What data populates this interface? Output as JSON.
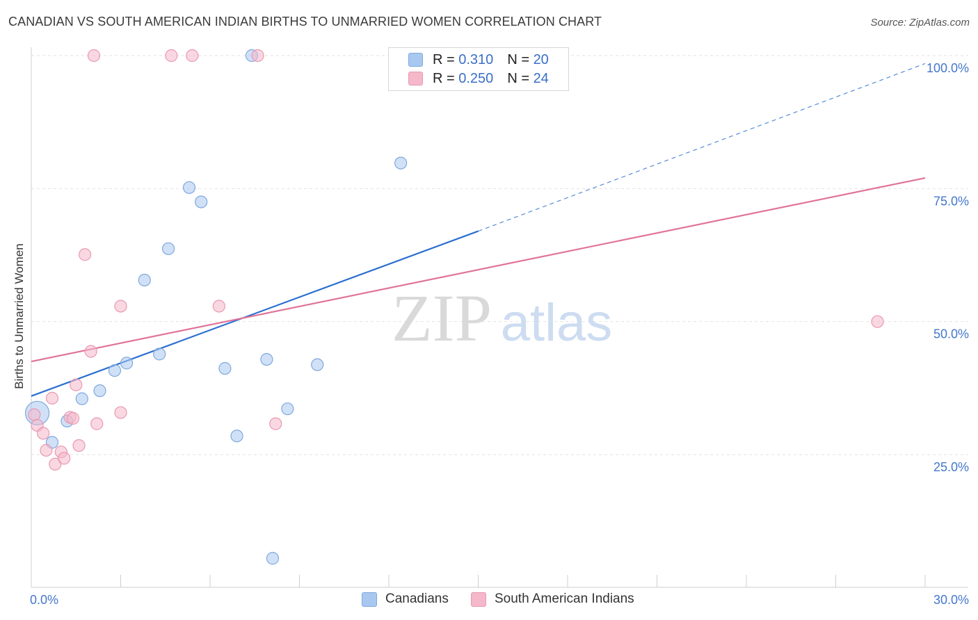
{
  "header": {
    "title": "CANADIAN VS SOUTH AMERICAN INDIAN BIRTHS TO UNMARRIED WOMEN CORRELATION CHART",
    "source": "Source: ZipAtlas.com"
  },
  "watermark": {
    "zip": "ZIP",
    "atlas": "atlas"
  },
  "legend_top": {
    "rows": [
      {
        "r_label": "R =",
        "r_value": "0.310",
        "n_label": "N =",
        "n_value": "20",
        "color": "#a9c8f0"
      },
      {
        "r_label": "R =",
        "r_value": "0.250",
        "n_label": "N =",
        "n_value": "24",
        "color": "#f5b8cb"
      }
    ]
  },
  "legend_bottom": {
    "items": [
      {
        "label": "Canadians",
        "color": "#a9c8f0"
      },
      {
        "label": "South American Indians",
        "color": "#f5b8cb"
      }
    ]
  },
  "chart_data": {
    "type": "scatter",
    "title": "CANADIAN VS SOUTH AMERICAN INDIAN BIRTHS TO UNMARRIED WOMEN CORRELATION CHART",
    "xlabel": "",
    "ylabel": "Births to Unmarried Women",
    "xlim": [
      0,
      30
    ],
    "ylim": [
      0,
      102
    ],
    "x_tick_labels": [
      {
        "value": 0,
        "label": "0.0%"
      },
      {
        "value": 30,
        "label": "30.0%"
      }
    ],
    "y_tick_labels": [
      {
        "value": 25,
        "label": "25.0%"
      },
      {
        "value": 50,
        "label": "50.0%"
      },
      {
        "value": 75,
        "label": "75.0%"
      },
      {
        "value": 100,
        "label": "100.0%"
      }
    ],
    "grid": true,
    "series": [
      {
        "name": "Canadians",
        "color": "#a9c8f0",
        "stroke": "#7fa8dc",
        "line_color": "#2a6fcf",
        "points": [
          {
            "x": 0.2,
            "y": 32.8,
            "big": true
          },
          {
            "x": 0.7,
            "y": 27.3
          },
          {
            "x": 1.2,
            "y": 31.3
          },
          {
            "x": 1.7,
            "y": 35.5
          },
          {
            "x": 2.3,
            "y": 37.0
          },
          {
            "x": 2.8,
            "y": 40.8
          },
          {
            "x": 3.2,
            "y": 42.2
          },
          {
            "x": 3.8,
            "y": 57.8
          },
          {
            "x": 4.3,
            "y": 43.9
          },
          {
            "x": 4.6,
            "y": 63.7
          },
          {
            "x": 5.3,
            "y": 75.2
          },
          {
            "x": 5.7,
            "y": 72.5
          },
          {
            "x": 6.5,
            "y": 41.2
          },
          {
            "x": 6.9,
            "y": 28.5
          },
          {
            "x": 7.4,
            "y": 100.0
          },
          {
            "x": 7.9,
            "y": 42.9
          },
          {
            "x": 8.1,
            "y": 5.5
          },
          {
            "x": 8.6,
            "y": 33.6
          },
          {
            "x": 9.6,
            "y": 41.9
          },
          {
            "x": 12.4,
            "y": 79.8
          }
        ],
        "trend": {
          "x_start": 0,
          "y_start": 36.0,
          "x_solid_end": 15.0,
          "y_solid_end": 67.0,
          "x_end": 30,
          "y_end": 98.5
        }
      },
      {
        "name": "South American Indians",
        "color": "#f5b8cb",
        "stroke": "#e898b2",
        "line_color": "#e07399",
        "points": [
          {
            "x": 0.1,
            "y": 32.5
          },
          {
            "x": 0.2,
            "y": 30.5
          },
          {
            "x": 0.4,
            "y": 29.0
          },
          {
            "x": 0.5,
            "y": 25.8
          },
          {
            "x": 0.7,
            "y": 35.6
          },
          {
            "x": 0.8,
            "y": 23.2
          },
          {
            "x": 1.0,
            "y": 25.5
          },
          {
            "x": 1.1,
            "y": 24.3
          },
          {
            "x": 1.3,
            "y": 32.0
          },
          {
            "x": 1.4,
            "y": 31.8
          },
          {
            "x": 1.5,
            "y": 38.1
          },
          {
            "x": 1.6,
            "y": 26.7
          },
          {
            "x": 1.8,
            "y": 62.6
          },
          {
            "x": 2.0,
            "y": 44.4
          },
          {
            "x": 2.2,
            "y": 30.8
          },
          {
            "x": 2.1,
            "y": 100.0
          },
          {
            "x": 3.0,
            "y": 32.9
          },
          {
            "x": 3.0,
            "y": 52.9
          },
          {
            "x": 4.7,
            "y": 100.0
          },
          {
            "x": 5.4,
            "y": 100.0
          },
          {
            "x": 6.3,
            "y": 52.9
          },
          {
            "x": 7.6,
            "y": 100.0
          },
          {
            "x": 8.2,
            "y": 30.8
          },
          {
            "x": 28.4,
            "y": 50.0
          }
        ],
        "trend": {
          "x_start": 0,
          "y_start": 42.5,
          "x_end": 30,
          "y_end": 77.0
        }
      }
    ]
  }
}
